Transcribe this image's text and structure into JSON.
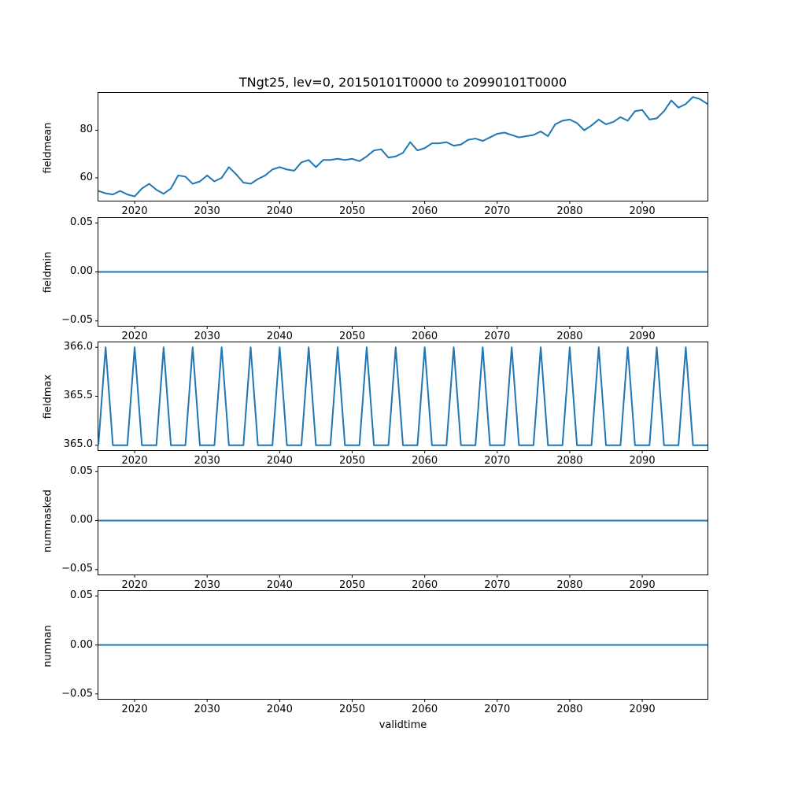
{
  "chart_data": {
    "type": "line",
    "title": "TNgt25, lev=0, 20150101T0000 to 20990101T0000",
    "xlabel": "validtime",
    "line_color": "#1f77b4",
    "xlim": [
      2015,
      2099
    ],
    "xticks": [
      2020,
      2030,
      2040,
      2050,
      2060,
      2070,
      2080,
      2090
    ],
    "xtick_labels": [
      "2020",
      "2030",
      "2040",
      "2050",
      "2060",
      "2070",
      "2080",
      "2090"
    ],
    "x": [
      2015,
      2016,
      2017,
      2018,
      2019,
      2020,
      2021,
      2022,
      2023,
      2024,
      2025,
      2026,
      2027,
      2028,
      2029,
      2030,
      2031,
      2032,
      2033,
      2034,
      2035,
      2036,
      2037,
      2038,
      2039,
      2040,
      2041,
      2042,
      2043,
      2044,
      2045,
      2046,
      2047,
      2048,
      2049,
      2050,
      2051,
      2052,
      2053,
      2054,
      2055,
      2056,
      2057,
      2058,
      2059,
      2060,
      2061,
      2062,
      2063,
      2064,
      2065,
      2066,
      2067,
      2068,
      2069,
      2070,
      2071,
      2072,
      2073,
      2074,
      2075,
      2076,
      2077,
      2078,
      2079,
      2080,
      2081,
      2082,
      2083,
      2084,
      2085,
      2086,
      2087,
      2088,
      2089,
      2090,
      2091,
      2092,
      2093,
      2094,
      2095,
      2096,
      2097,
      2098,
      2099
    ],
    "subplots": [
      {
        "ylabel": "fieldmean",
        "ylim": [
          50.4,
          95.7
        ],
        "yticks": [
          80,
          60
        ],
        "ytick_labels": [
          "80",
          "60"
        ],
        "values": [
          54.5,
          53.5,
          53.0,
          54.5,
          53.0,
          52.2,
          55.5,
          57.5,
          55.0,
          53.3,
          55.5,
          61.0,
          60.5,
          57.5,
          58.5,
          61.0,
          58.5,
          60.0,
          64.5,
          61.5,
          58.0,
          57.5,
          59.5,
          61.0,
          63.5,
          64.5,
          63.5,
          63.0,
          66.5,
          67.5,
          64.5,
          67.5,
          67.5,
          68.0,
          67.5,
          68.0,
          67.0,
          69.0,
          71.5,
          72.0,
          68.5,
          69.0,
          70.5,
          75.0,
          71.5,
          72.5,
          74.5,
          74.5,
          75.0,
          73.5,
          74.0,
          76.0,
          76.5,
          75.5,
          77.0,
          78.5,
          79.0,
          78.0,
          77.0,
          77.5,
          78.0,
          79.5,
          77.5,
          82.5,
          84.0,
          84.5,
          83.0,
          80.0,
          82.0,
          84.5,
          82.5,
          83.5,
          85.5,
          84.0,
          88.0,
          88.5,
          84.5,
          85.0,
          88.0,
          92.5,
          89.5,
          91.0,
          94.0,
          93.0,
          91.0
        ]
      },
      {
        "ylabel": "fieldmin",
        "ylim": [
          -0.055,
          0.055
        ],
        "yticks": [
          0.05,
          0.0,
          -0.05
        ],
        "ytick_labels": [
          "0.05",
          "0.00",
          "−0.05"
        ],
        "constant": 0.0
      },
      {
        "ylabel": "fieldmax",
        "ylim": [
          364.95,
          366.05
        ],
        "yticks": [
          366.0,
          365.5,
          365.0
        ],
        "ytick_labels": [
          "366.0",
          "365.5",
          "365.0"
        ],
        "values": [
          365,
          366,
          365,
          365,
          365,
          366,
          365,
          365,
          365,
          366,
          365,
          365,
          365,
          366,
          365,
          365,
          365,
          366,
          365,
          365,
          365,
          366,
          365,
          365,
          365,
          366,
          365,
          365,
          365,
          366,
          365,
          365,
          365,
          366,
          365,
          365,
          365,
          366,
          365,
          365,
          365,
          366,
          365,
          365,
          365,
          366,
          365,
          365,
          365,
          366,
          365,
          365,
          365,
          366,
          365,
          365,
          365,
          366,
          365,
          365,
          365,
          366,
          365,
          365,
          365,
          366,
          365,
          365,
          365,
          366,
          365,
          365,
          365,
          366,
          365,
          365,
          365,
          366,
          365,
          365,
          365,
          366,
          365,
          365,
          365
        ]
      },
      {
        "ylabel": "nummasked",
        "ylim": [
          -0.055,
          0.055
        ],
        "yticks": [
          0.05,
          0.0,
          -0.05
        ],
        "ytick_labels": [
          "0.05",
          "0.00",
          "−0.05"
        ],
        "constant": 0.0
      },
      {
        "ylabel": "numnan",
        "ylim": [
          -0.055,
          0.055
        ],
        "yticks": [
          0.05,
          0.0,
          -0.05
        ],
        "ytick_labels": [
          "0.05",
          "0.00",
          "−0.05"
        ],
        "constant": 0.0
      }
    ]
  }
}
